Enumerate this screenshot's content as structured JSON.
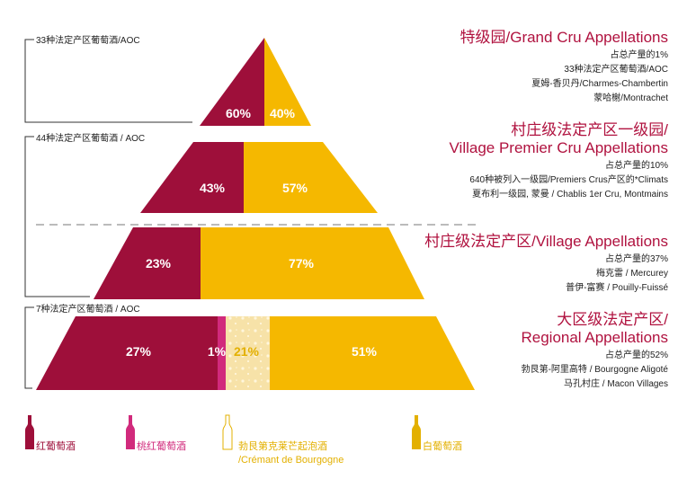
{
  "colors": {
    "red": "#9e0f3a",
    "rose": "#d12a7c",
    "cremant": "#f7e2a8",
    "white": "#f5b800",
    "title": "#b0123f"
  },
  "left_labels": [
    "33种法定产区葡萄酒/AOC",
    "44种法定产区葡萄酒 / AOC",
    "7种法定产区葡萄酒 / AOC"
  ],
  "tiers": [
    {
      "title": [
        "特级园/Grand Cru Appellations"
      ],
      "lines": [
        "占总产量的1%",
        "33种法定产区葡萄酒/AOC",
        "夏姆-香贝丹/Charmes-Chambertin",
        "蒙哈榭/Montrachet"
      ],
      "percents": [
        "60%",
        "40%"
      ]
    },
    {
      "title": [
        "村庄级法定产区一级园/",
        "Village Premier Cru Appellations"
      ],
      "lines": [
        "占总产量的10%",
        "640种被列入一级园/Premiers Crus产区的*Climats",
        "夏布利一级园, 蒙曼 / Chablis 1er Cru, Montmains"
      ],
      "percents": [
        "43%",
        "57%"
      ]
    },
    {
      "title": [
        "村庄级法定产区/Village Appellations"
      ],
      "lines": [
        "占总产量的37%",
        "梅克雷 / Mercurey",
        "普伊-富赛 / Pouilly-Fuissé"
      ],
      "percents": [
        "23%",
        "77%"
      ]
    },
    {
      "title": [
        "大区级法定产区/",
        "Regional Appellations"
      ],
      "lines": [
        "占总产量的52%",
        "勃艮第-阿里高特 / Bourgogne Aligoté",
        "马孔村庄 / Macon Villages"
      ],
      "percents": [
        "27%",
        "1%",
        "21%",
        "51%"
      ]
    }
  ],
  "legend": [
    {
      "lines": [
        "红葡萄酒"
      ],
      "color": "#9e0f3a",
      "icon": "red-wine-bottle-icon"
    },
    {
      "lines": [
        "桃红葡萄酒"
      ],
      "color": "#d12a7c",
      "icon": "rose-wine-bottle-icon"
    },
    {
      "lines": [
        "勃艮第克莱芒起泡酒",
        "/Crémant de Bourgogne"
      ],
      "color": "#e3b000",
      "icon": "cremant-bottle-icon"
    },
    {
      "lines": [
        "白葡萄酒"
      ],
      "color": "#e3b000",
      "icon": "white-wine-bottle-icon"
    }
  ]
}
